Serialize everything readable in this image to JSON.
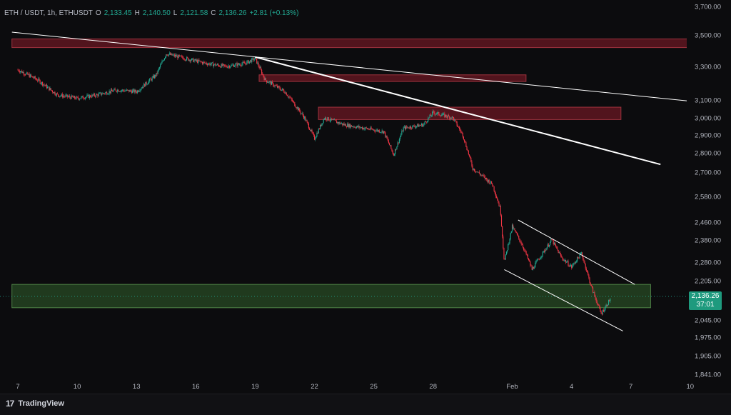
{
  "header": {
    "symbol": "ETH / USDT, 1h, ETHUSDT",
    "o_label": "O",
    "o_value": "2,133.45",
    "h_label": "H",
    "h_value": "2,140.50",
    "l_label": "L",
    "l_value": "2,121.58",
    "c_label": "C",
    "c_value": "2,136.26",
    "change": "+2.81 (+0.13%)"
  },
  "price_badge": {
    "price": "2,136.26",
    "countdown": "37:01"
  },
  "brand": {
    "logo": "17",
    "name": "TradingView"
  },
  "colors": {
    "up": "#22ab94",
    "down": "#f23645",
    "resistance_zone": "#8c1c2a",
    "support_zone": "#2e5a2a",
    "trendline": "#ffffff",
    "background": "#0c0c0e"
  },
  "chart_data": {
    "type": "candlestick",
    "title": "",
    "xlabel": "",
    "ylabel": "",
    "y_ticks": [
      "3,700.00",
      "3,500.00",
      "3,300.00",
      "3,100.00",
      "3,000.00",
      "2,900.00",
      "2,800.00",
      "2,700.00",
      "2,580.00",
      "2,460.00",
      "2,380.00",
      "2,280.00",
      "2,205.00",
      "2,045.00",
      "1,975.00",
      "1,905.00",
      "1,841.00"
    ],
    "x_ticks": [
      {
        "label": "7",
        "day": 0
      },
      {
        "label": "10",
        "day": 3
      },
      {
        "label": "13",
        "day": 6
      },
      {
        "label": "16",
        "day": 9
      },
      {
        "label": "19",
        "day": 12
      },
      {
        "label": "22",
        "day": 15
      },
      {
        "label": "25",
        "day": 18
      },
      {
        "label": "28",
        "day": 21
      },
      {
        "label": "Feb",
        "day": 25
      },
      {
        "label": "4",
        "day": 28
      },
      {
        "label": "7",
        "day": 31
      },
      {
        "label": "10",
        "day": 34
      }
    ],
    "price_path": [
      [
        0,
        3280
      ],
      [
        1,
        3220
      ],
      [
        2,
        3130
      ],
      [
        3,
        3110
      ],
      [
        4,
        3130
      ],
      [
        5,
        3160
      ],
      [
        6,
        3150
      ],
      [
        7,
        3250
      ],
      [
        7.5,
        3380
      ],
      [
        8.5,
        3350
      ],
      [
        9.5,
        3320
      ],
      [
        10.5,
        3300
      ],
      [
        11.5,
        3320
      ],
      [
        12,
        3350
      ],
      [
        12.5,
        3220
      ],
      [
        13.5,
        3150
      ],
      [
        14.5,
        3000
      ],
      [
        15,
        2880
      ],
      [
        15.5,
        3000
      ],
      [
        16.5,
        2960
      ],
      [
        17.5,
        2940
      ],
      [
        18.5,
        2920
      ],
      [
        19,
        2790
      ],
      [
        19.5,
        2940
      ],
      [
        20.5,
        2960
      ],
      [
        21,
        3030
      ],
      [
        22,
        3000
      ],
      [
        22.5,
        2900
      ],
      [
        23,
        2720
      ],
      [
        24,
        2640
      ],
      [
        24.4,
        2520
      ],
      [
        24.6,
        2280
      ],
      [
        25,
        2440
      ],
      [
        25.5,
        2360
      ],
      [
        26,
        2250
      ],
      [
        27,
        2380
      ],
      [
        27.5,
        2300
      ],
      [
        28,
        2260
      ],
      [
        28.5,
        2320
      ],
      [
        29,
        2180
      ],
      [
        29.5,
        2070
      ],
      [
        30,
        2136.26
      ]
    ],
    "resistance_zones": [
      {
        "day_start": -0.3,
        "day_end": 35.2,
        "price_low": 3420,
        "price_high": 3475
      },
      {
        "day_start": 12.2,
        "day_end": 25.7,
        "price_low": 3210,
        "price_high": 3250
      },
      {
        "day_start": 15.2,
        "day_end": 30.5,
        "price_low": 2990,
        "price_high": 3060
      }
    ],
    "support_zones": [
      {
        "day_start": -0.3,
        "day_end": 32,
        "price_low": 2095,
        "price_high": 2190
      }
    ],
    "trendlines": [
      {
        "from": [
          -0.3,
          3520
        ],
        "to": [
          35.2,
          3080
        ],
        "width": 1
      },
      {
        "from": [
          12,
          3360
        ],
        "to": [
          32.5,
          2740
        ],
        "width": 2
      },
      {
        "from": [
          25.3,
          2470
        ],
        "to": [
          31.2,
          2190
        ],
        "width": 1
      },
      {
        "from": [
          24.6,
          2250
        ],
        "to": [
          30.6,
          2000
        ],
        "width": 1
      }
    ],
    "ylim": [
      1841,
      3700
    ],
    "grid": false,
    "legend": "none"
  }
}
